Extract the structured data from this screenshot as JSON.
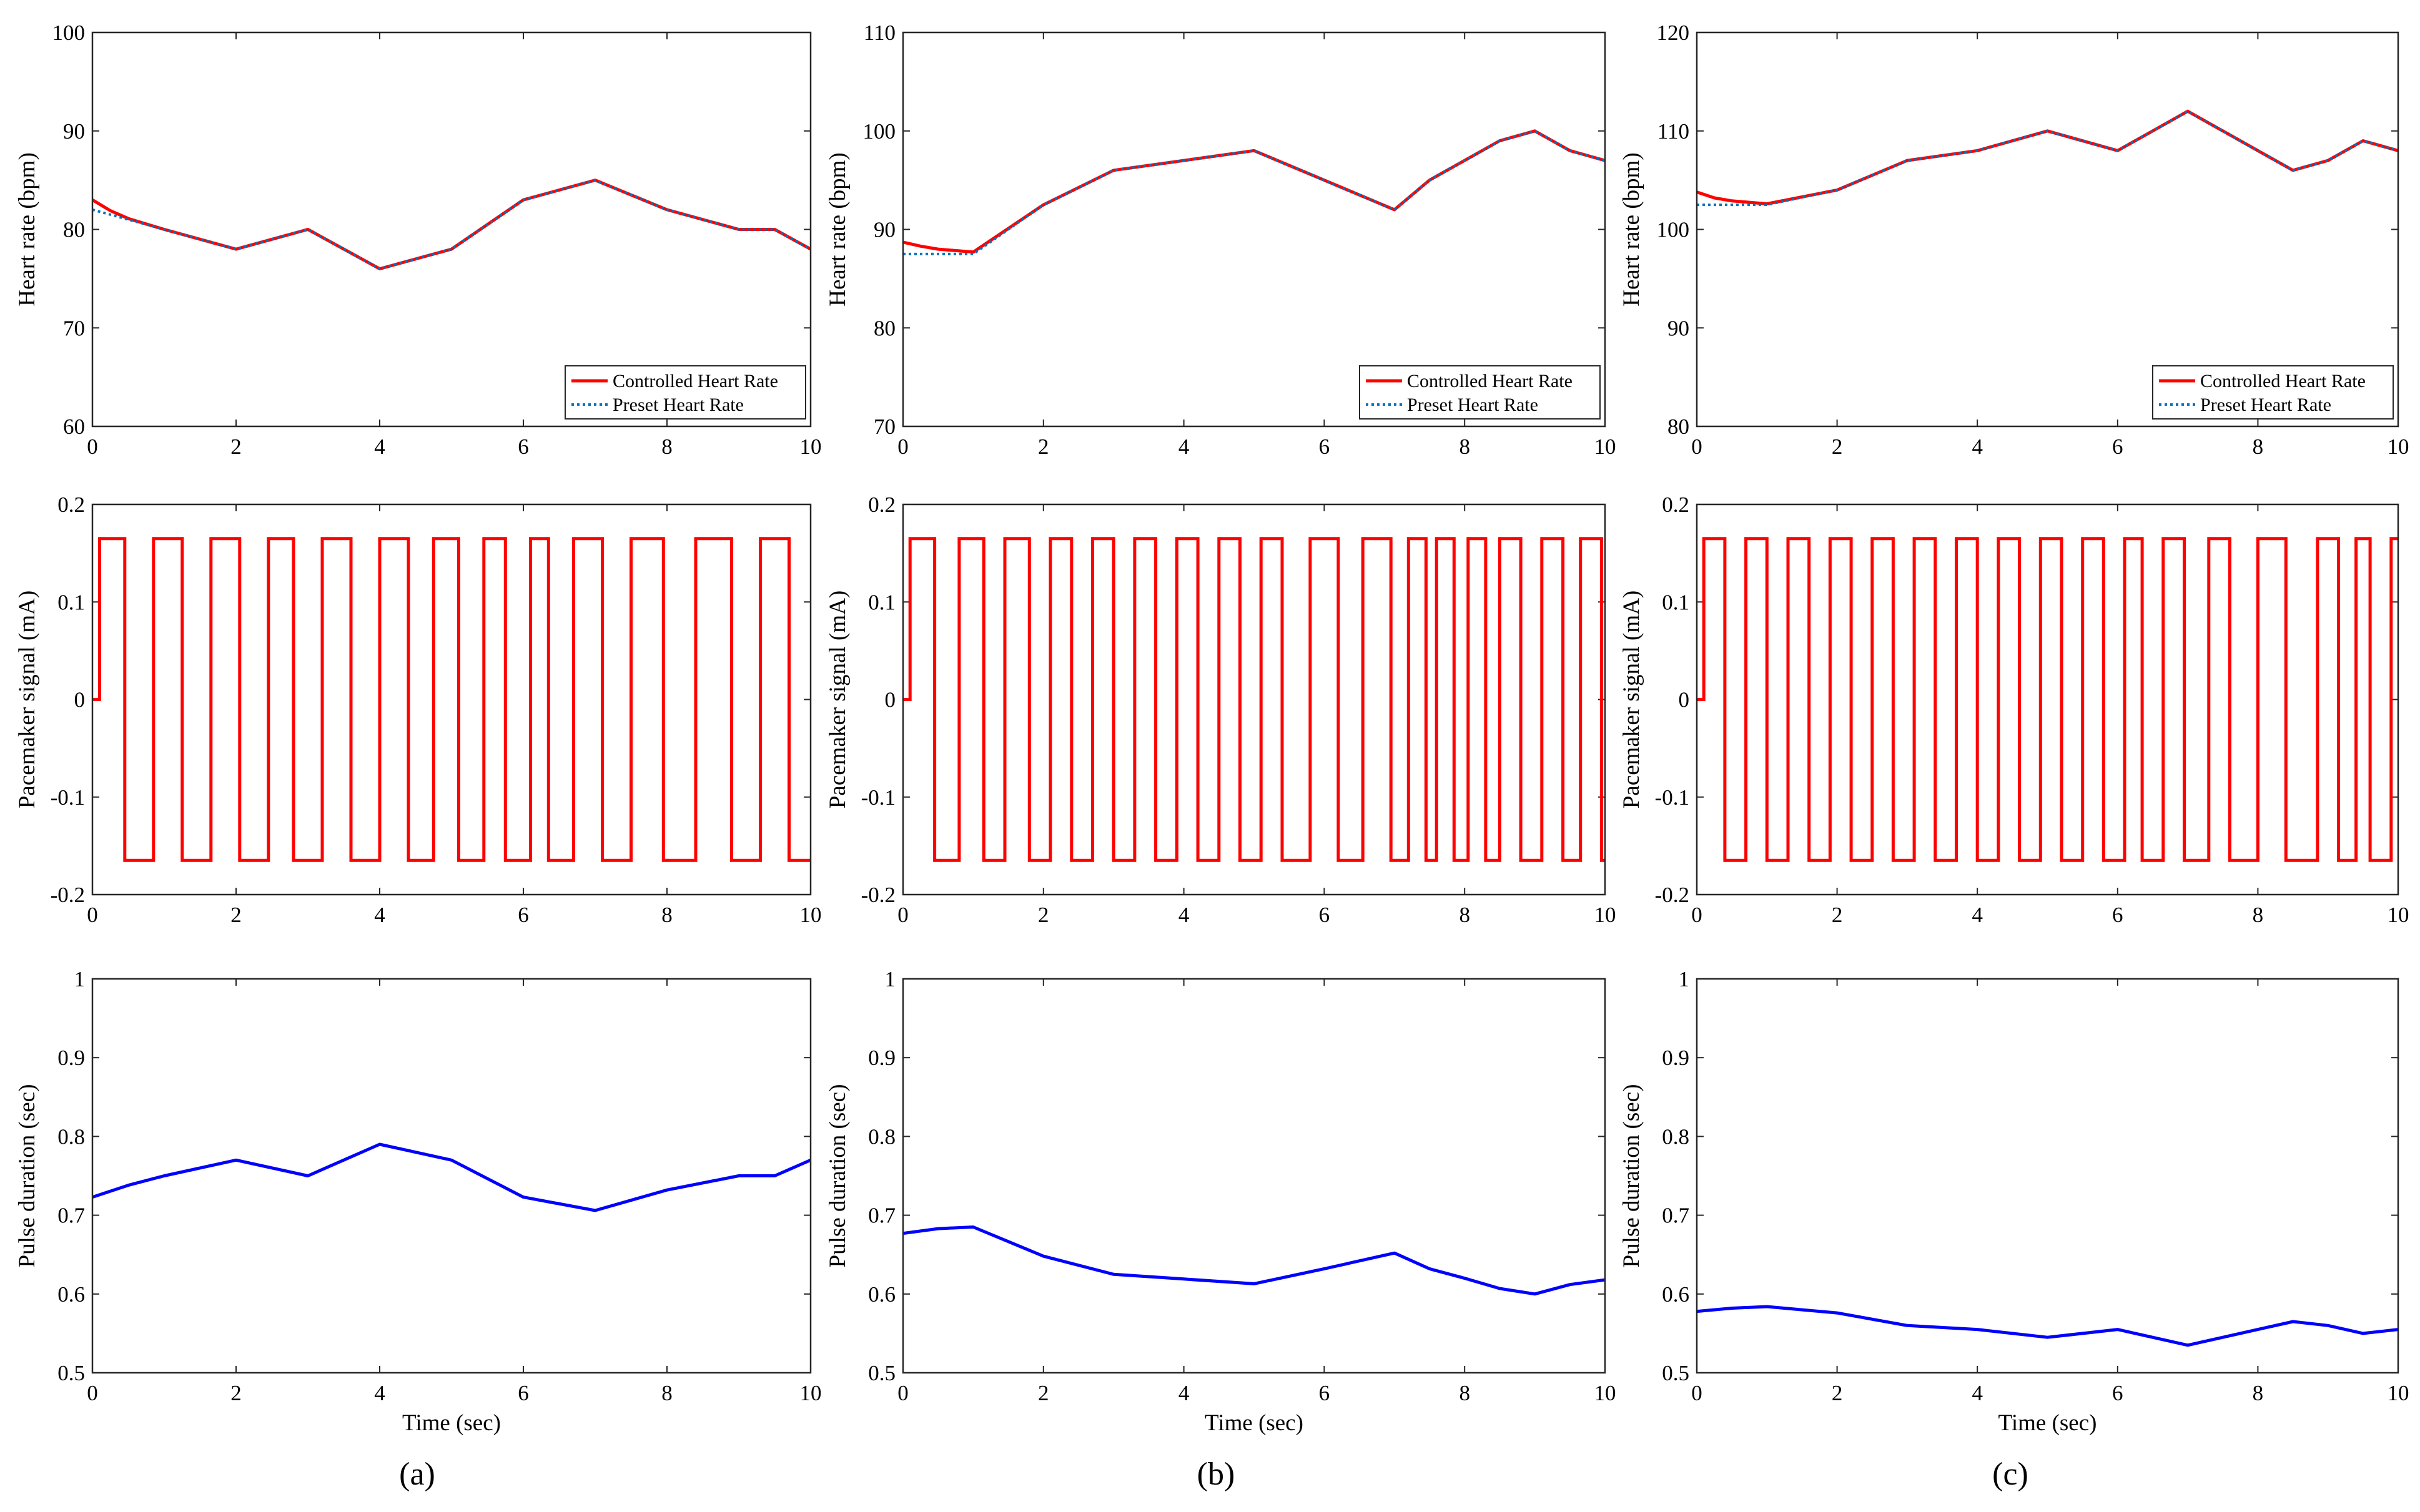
{
  "figure": {
    "panel_labels": [
      "(a)",
      "(b)",
      "(c)"
    ],
    "colors": {
      "controlled": "#ff0000",
      "preset": "#0072bd",
      "pacemaker": "#ff0000",
      "pulse": "#0000ff"
    }
  },
  "chart_data": [
    {
      "id": "a-heart-rate",
      "column": 0,
      "row": 0,
      "type": "line",
      "xlabel": "",
      "ylabel": "Heart rate (bpm)",
      "xlim": [
        0,
        10
      ],
      "ylim": [
        60,
        100
      ],
      "xticks": [
        0,
        2,
        4,
        6,
        8,
        10
      ],
      "yticks": [
        60,
        70,
        80,
        90,
        100
      ],
      "legend": {
        "placement": "bottom-right",
        "entries": [
          "Controlled Heart Rate",
          "Preset Heart Rate"
        ]
      },
      "series": [
        {
          "name": "Controlled Heart Rate",
          "style": "solid",
          "color_key": "controlled",
          "x": [
            0,
            0.25,
            0.5,
            1,
            2,
            3,
            4,
            5,
            6,
            7,
            8,
            9,
            9.5,
            10
          ],
          "y": [
            83,
            81.9,
            81.1,
            80,
            78,
            80,
            76,
            78,
            83,
            85,
            82,
            80,
            80,
            78
          ]
        },
        {
          "name": "Preset Heart Rate",
          "style": "dotted",
          "color_key": "preset",
          "x": [
            0,
            1,
            2,
            3,
            4,
            5,
            6,
            7,
            8,
            9,
            9.5,
            10
          ],
          "y": [
            82,
            80,
            78,
            80,
            76,
            78,
            83,
            85,
            82,
            80,
            80,
            78
          ]
        }
      ]
    },
    {
      "id": "a-pacemaker",
      "column": 0,
      "row": 1,
      "type": "line",
      "xlabel": "",
      "ylabel": "Pacemaker signal (mA)",
      "xlim": [
        0,
        10
      ],
      "ylim": [
        -0.2,
        0.2
      ],
      "xticks": [
        0,
        2,
        4,
        6,
        8,
        10
      ],
      "yticks": [
        -0.2,
        -0.1,
        0,
        0.1,
        0.2
      ],
      "square_wave": {
        "amplitude": 0.165,
        "start": 0.1,
        "transitions": [
          0.45,
          0.85,
          1.25,
          1.65,
          2.05,
          2.45,
          2.8,
          3.2,
          3.6,
          4.0,
          4.4,
          4.75,
          5.1,
          5.45,
          5.75,
          6.1,
          6.35,
          6.7,
          7.1,
          7.5,
          7.95,
          8.4,
          8.9,
          9.3,
          9.7,
          10
        ]
      },
      "series": [
        {
          "name": "Pacemaker signal",
          "style": "solid",
          "color_key": "pacemaker"
        }
      ]
    },
    {
      "id": "a-pulse",
      "column": 0,
      "row": 2,
      "type": "line",
      "xlabel": "Time (sec)",
      "ylabel": "Pulse duration (sec)",
      "xlim": [
        0,
        10
      ],
      "ylim": [
        0.5,
        1
      ],
      "xticks": [
        0,
        2,
        4,
        6,
        8,
        10
      ],
      "yticks": [
        0.5,
        0.6,
        0.7,
        0.8,
        0.9,
        1
      ],
      "series": [
        {
          "name": "Pulse duration",
          "style": "solid",
          "color_key": "pulse",
          "x": [
            0,
            0.5,
            1,
            2,
            3,
            4,
            5,
            6,
            7,
            8,
            9,
            9.5,
            10
          ],
          "y": [
            0.723,
            0.738,
            0.75,
            0.77,
            0.75,
            0.79,
            0.77,
            0.723,
            0.706,
            0.732,
            0.75,
            0.75,
            0.77
          ]
        }
      ]
    },
    {
      "id": "b-heart-rate",
      "column": 1,
      "row": 0,
      "type": "line",
      "xlabel": "",
      "ylabel": "Heart rate (bpm)",
      "xlim": [
        0,
        10
      ],
      "ylim": [
        70,
        110
      ],
      "xticks": [
        0,
        2,
        4,
        6,
        8,
        10
      ],
      "yticks": [
        70,
        80,
        90,
        100,
        110
      ],
      "legend": {
        "placement": "bottom-right",
        "entries": [
          "Controlled Heart Rate",
          "Preset Heart Rate"
        ]
      },
      "series": [
        {
          "name": "Controlled Heart Rate",
          "style": "solid",
          "color_key": "controlled",
          "x": [
            0,
            0.25,
            0.5,
            1,
            2,
            3,
            4,
            5,
            6,
            7,
            7.5,
            8,
            8.5,
            9,
            9.5,
            10
          ],
          "y": [
            88.7,
            88.3,
            88,
            87.7,
            92.5,
            96,
            97,
            98,
            95,
            92,
            95,
            97,
            99,
            100,
            98,
            97
          ]
        },
        {
          "name": "Preset Heart Rate",
          "style": "dotted",
          "color_key": "preset",
          "x": [
            0,
            0.5,
            1,
            2,
            3,
            4,
            5,
            6,
            7,
            7.5,
            8,
            8.5,
            9,
            9.5,
            10
          ],
          "y": [
            87.5,
            87.5,
            87.5,
            92.5,
            96,
            97,
            98,
            95,
            92,
            95,
            97,
            99,
            100,
            98,
            97
          ]
        }
      ]
    },
    {
      "id": "b-pacemaker",
      "column": 1,
      "row": 1,
      "type": "line",
      "xlabel": "",
      "ylabel": "Pacemaker signal (mA)",
      "xlim": [
        0,
        10
      ],
      "ylim": [
        -0.2,
        0.2
      ],
      "xticks": [
        0,
        2,
        4,
        6,
        8,
        10
      ],
      "yticks": [
        -0.2,
        -0.1,
        0,
        0.1,
        0.2
      ],
      "square_wave": {
        "amplitude": 0.165,
        "start": 0.1,
        "transitions": [
          0.45,
          0.8,
          1.15,
          1.45,
          1.8,
          2.1,
          2.4,
          2.7,
          3.0,
          3.3,
          3.6,
          3.9,
          4.2,
          4.5,
          4.8,
          5.1,
          5.4,
          5.8,
          6.2,
          6.55,
          6.95,
          7.2,
          7.45,
          7.6,
          7.85,
          8.05,
          8.3,
          8.5,
          8.8,
          9.1,
          9.4,
          9.65,
          9.95,
          10
        ]
      },
      "series": [
        {
          "name": "Pacemaker signal",
          "style": "solid",
          "color_key": "pacemaker"
        }
      ]
    },
    {
      "id": "b-pulse",
      "column": 1,
      "row": 2,
      "type": "line",
      "xlabel": "Time (sec)",
      "ylabel": "Pulse duration (sec)",
      "xlim": [
        0,
        10
      ],
      "ylim": [
        0.5,
        1
      ],
      "xticks": [
        0,
        2,
        4,
        6,
        8,
        10
      ],
      "yticks": [
        0.5,
        0.6,
        0.7,
        0.8,
        0.9,
        1
      ],
      "series": [
        {
          "name": "Pulse duration",
          "style": "solid",
          "color_key": "pulse",
          "x": [
            0,
            0.5,
            1,
            2,
            3,
            4,
            5,
            6,
            7,
            7.5,
            8,
            8.5,
            9,
            9.5,
            10
          ],
          "y": [
            0.677,
            0.683,
            0.685,
            0.648,
            0.625,
            0.619,
            0.613,
            0.632,
            0.652,
            0.632,
            0.62,
            0.607,
            0.6,
            0.612,
            0.618
          ]
        }
      ]
    },
    {
      "id": "c-heart-rate",
      "column": 2,
      "row": 0,
      "type": "line",
      "xlabel": "",
      "ylabel": "Heart rate (bpm)",
      "xlim": [
        0,
        10
      ],
      "ylim": [
        80,
        120
      ],
      "xticks": [
        0,
        2,
        4,
        6,
        8,
        10
      ],
      "yticks": [
        80,
        90,
        100,
        110,
        120
      ],
      "legend": {
        "placement": "bottom-right",
        "entries": [
          "Controlled Heart Rate",
          "Preset Heart Rate"
        ]
      },
      "series": [
        {
          "name": "Controlled Heart Rate",
          "style": "solid",
          "color_key": "controlled",
          "x": [
            0,
            0.25,
            0.5,
            1,
            2,
            3,
            4,
            5,
            6,
            7,
            8,
            8.5,
            9,
            9.5,
            10
          ],
          "y": [
            103.8,
            103.2,
            102.9,
            102.6,
            104,
            107,
            108,
            110,
            108,
            112,
            108,
            106,
            107,
            109,
            108
          ]
        },
        {
          "name": "Preset Heart Rate",
          "style": "dotted",
          "color_key": "preset",
          "x": [
            0,
            0.5,
            1,
            2,
            3,
            4,
            5,
            6,
            7,
            8,
            8.5,
            9,
            9.5,
            10
          ],
          "y": [
            102.5,
            102.5,
            102.5,
            104,
            107,
            108,
            110,
            108,
            112,
            108,
            106,
            107,
            109,
            108
          ]
        }
      ]
    },
    {
      "id": "c-pacemaker",
      "column": 2,
      "row": 1,
      "type": "line",
      "xlabel": "",
      "ylabel": "Pacemaker signal (mA)",
      "xlim": [
        0,
        10
      ],
      "ylim": [
        -0.2,
        0.2
      ],
      "xticks": [
        0,
        2,
        4,
        6,
        8,
        10
      ],
      "yticks": [
        -0.2,
        -0.1,
        0,
        0.1,
        0.2
      ],
      "square_wave": {
        "amplitude": 0.165,
        "start": 0.1,
        "transitions": [
          0.4,
          0.7,
          1.0,
          1.3,
          1.6,
          1.9,
          2.2,
          2.5,
          2.8,
          3.1,
          3.4,
          3.7,
          4.0,
          4.3,
          4.6,
          4.9,
          5.2,
          5.5,
          5.8,
          6.1,
          6.35,
          6.65,
          6.95,
          7.3,
          7.6,
          8.0,
          8.4,
          8.85,
          9.15,
          9.4,
          9.6,
          9.9,
          10
        ]
      },
      "series": [
        {
          "name": "Pacemaker signal",
          "style": "solid",
          "color_key": "pacemaker"
        }
      ]
    },
    {
      "id": "c-pulse",
      "column": 2,
      "row": 2,
      "type": "line",
      "xlabel": "Time (sec)",
      "ylabel": "Pulse duration (sec)",
      "xlim": [
        0,
        10
      ],
      "ylim": [
        0.5,
        1
      ],
      "xticks": [
        0,
        2,
        4,
        6,
        8,
        10
      ],
      "yticks": [
        0.5,
        0.6,
        0.7,
        0.8,
        0.9,
        1
      ],
      "series": [
        {
          "name": "Pulse duration",
          "style": "solid",
          "color_key": "pulse",
          "x": [
            0,
            0.5,
            1,
            2,
            3,
            4,
            5,
            6,
            7,
            8,
            8.5,
            9,
            9.5,
            10
          ],
          "y": [
            0.578,
            0.582,
            0.584,
            0.576,
            0.56,
            0.555,
            0.545,
            0.555,
            0.535,
            0.555,
            0.565,
            0.56,
            0.55,
            0.555
          ]
        }
      ]
    }
  ]
}
